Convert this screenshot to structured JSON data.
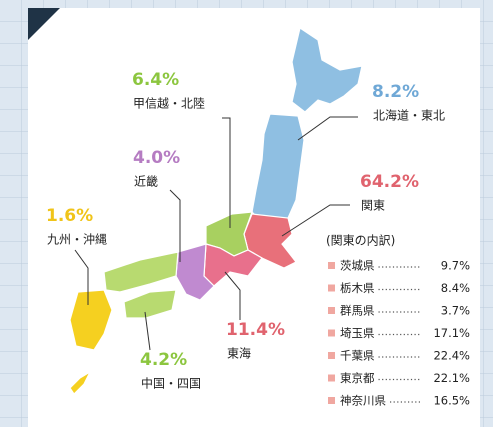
{
  "regions": [
    {
      "name": "甲信越・北陸",
      "value": "6.4%",
      "color": "#8cc63f"
    },
    {
      "name": "北海道・東北",
      "value": "8.2%",
      "color": "#6fa8d6"
    },
    {
      "name": "近畿",
      "value": "4.0%",
      "color": "#b57cc2"
    },
    {
      "name": "関東",
      "value": "64.2%",
      "color": "#e0636e"
    },
    {
      "name": "九州・沖縄",
      "value": "1.6%",
      "color": "#f0c419"
    },
    {
      "name": "東海",
      "value": "11.4%",
      "color": "#e0636e"
    },
    {
      "name": "中国・四国",
      "value": "4.2%",
      "color": "#8cc63f"
    }
  ],
  "breakdown": {
    "title": "(関東の内訳)",
    "items": [
      {
        "name": "茨城県",
        "value": "9.7%"
      },
      {
        "name": "栃木県",
        "value": "8.4%"
      },
      {
        "name": "群馬県",
        "value": "3.7%"
      },
      {
        "name": "埼玉県",
        "value": "17.1%"
      },
      {
        "name": "千葉県",
        "value": "22.4%"
      },
      {
        "name": "東京都",
        "value": "22.1%"
      },
      {
        "name": "神奈川県",
        "value": "16.5%"
      }
    ]
  }
}
